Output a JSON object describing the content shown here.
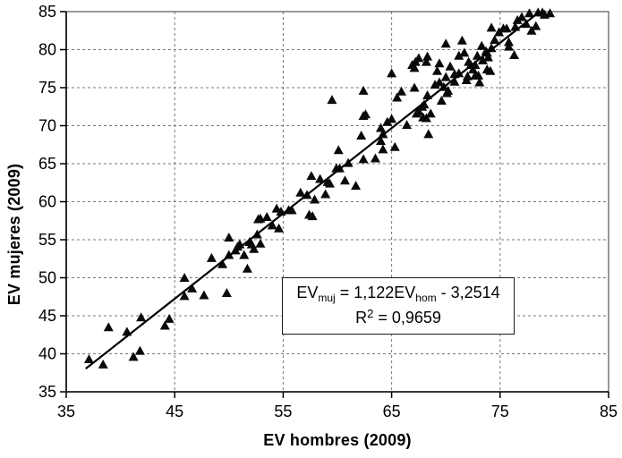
{
  "chart_data": {
    "type": "scatter",
    "title": "",
    "xlabel": "EV hombres (2009)",
    "ylabel": "EV mujeres (2009)",
    "xlim": [
      35,
      85
    ],
    "ylim": [
      35,
      85
    ],
    "x_ticks": [
      35,
      45,
      55,
      65,
      75,
      85
    ],
    "y_ticks": [
      35,
      40,
      45,
      50,
      55,
      60,
      65,
      70,
      75,
      80,
      85
    ],
    "grid": {
      "x_gridlines": [
        45,
        55,
        65,
        75
      ],
      "y_gridlines": [
        40,
        45,
        50,
        55,
        60,
        65,
        70,
        75,
        80
      ],
      "style": "dashed"
    },
    "legend": "none",
    "marker": {
      "shape": "triangle",
      "color": "#0a0a0a"
    },
    "colors": {
      "trendline": "#000000",
      "gridline": "#777777",
      "border": "#555555",
      "axis": "#000000",
      "text": "#000000"
    },
    "trendline": {
      "slope": 1.122,
      "intercept": -3.2514,
      "x_start": 36.8,
      "x_end": 79.3
    },
    "annotation": {
      "line1_parts": [
        {
          "t": "EV"
        },
        {
          "sub": "muj"
        },
        {
          "t": " = 1,122EV"
        },
        {
          "sub": "hom"
        },
        {
          "t": " - 3,2514"
        }
      ],
      "line2_parts": [
        {
          "t": "R"
        },
        {
          "sup": "2"
        },
        {
          "t": " = 0,9659"
        }
      ]
    },
    "points": [
      [
        37.1,
        39.3
      ],
      [
        38.4,
        38.6
      ],
      [
        38.9,
        43.5
      ],
      [
        40.6,
        42.9
      ],
      [
        41.2,
        39.6
      ],
      [
        41.8,
        40.4
      ],
      [
        41.9,
        44.8
      ],
      [
        44.1,
        43.7
      ],
      [
        44.5,
        44.6
      ],
      [
        45.9,
        50.0
      ],
      [
        45.9,
        47.6
      ],
      [
        46.6,
        48.6
      ],
      [
        47.7,
        47.7
      ],
      [
        48.4,
        52.6
      ],
      [
        49.4,
        51.8
      ],
      [
        49.8,
        48.0
      ],
      [
        50.0,
        55.3
      ],
      [
        50.0,
        53.0
      ],
      [
        50.6,
        53.6
      ],
      [
        50.8,
        54.1
      ],
      [
        51.0,
        54.4
      ],
      [
        51.4,
        53.0
      ],
      [
        51.7,
        51.2
      ],
      [
        51.9,
        54.7
      ],
      [
        52.1,
        54.4
      ],
      [
        52.3,
        53.8
      ],
      [
        52.6,
        55.7
      ],
      [
        52.7,
        57.7
      ],
      [
        52.9,
        57.8
      ],
      [
        52.9,
        54.5
      ],
      [
        53.5,
        58.0
      ],
      [
        54.0,
        56.9
      ],
      [
        54.4,
        59.1
      ],
      [
        54.6,
        56.5
      ],
      [
        54.8,
        58.7
      ],
      [
        55.5,
        58.9
      ],
      [
        55.8,
        58.9
      ],
      [
        56.6,
        61.2
      ],
      [
        57.2,
        60.9
      ],
      [
        57.4,
        58.3
      ],
      [
        57.6,
        63.4
      ],
      [
        57.7,
        58.1
      ],
      [
        57.9,
        60.3
      ],
      [
        58.4,
        63.0
      ],
      [
        58.9,
        61.0
      ],
      [
        59.1,
        62.6
      ],
      [
        59.3,
        62.4
      ],
      [
        59.5,
        73.4
      ],
      [
        59.9,
        64.4
      ],
      [
        60.1,
        66.8
      ],
      [
        60.2,
        64.4
      ],
      [
        60.7,
        62.8
      ],
      [
        61.0,
        65.1
      ],
      [
        61.7,
        62.1
      ],
      [
        62.2,
        68.7
      ],
      [
        62.4,
        74.6
      ],
      [
        62.4,
        71.3
      ],
      [
        62.4,
        65.6
      ],
      [
        62.6,
        71.5
      ],
      [
        63.5,
        65.7
      ],
      [
        64.0,
        69.7
      ],
      [
        64.0,
        68.0
      ],
      [
        64.2,
        68.9
      ],
      [
        64.2,
        66.9
      ],
      [
        64.6,
        70.5
      ],
      [
        65.0,
        70.9
      ],
      [
        65.0,
        76.9
      ],
      [
        65.3,
        67.2
      ],
      [
        65.5,
        73.7
      ],
      [
        65.9,
        74.5
      ],
      [
        66.4,
        70.1
      ],
      [
        66.9,
        78.0
      ],
      [
        67.1,
        77.6
      ],
      [
        67.1,
        75.0
      ],
      [
        67.2,
        78.4
      ],
      [
        67.3,
        71.6
      ],
      [
        67.5,
        78.9
      ],
      [
        67.5,
        71.9
      ],
      [
        67.8,
        72.5
      ],
      [
        67.9,
        71.1
      ],
      [
        68.0,
        72.8
      ],
      [
        68.2,
        78.4
      ],
      [
        68.2,
        71.0
      ],
      [
        68.3,
        79.1
      ],
      [
        68.3,
        74.0
      ],
      [
        68.4,
        68.9
      ],
      [
        68.6,
        71.6
      ],
      [
        69.0,
        75.4
      ],
      [
        69.2,
        77.2
      ],
      [
        69.4,
        78.2
      ],
      [
        69.4,
        75.7
      ],
      [
        69.6,
        73.3
      ],
      [
        69.8,
        75.1
      ],
      [
        70.0,
        80.8
      ],
      [
        70.0,
        76.4
      ],
      [
        70.1,
        74.3
      ],
      [
        70.2,
        74.6
      ],
      [
        70.4,
        77.8
      ],
      [
        70.8,
        76.8
      ],
      [
        70.8,
        75.8
      ],
      [
        71.2,
        79.2
      ],
      [
        71.2,
        76.9
      ],
      [
        71.5,
        81.2
      ],
      [
        71.7,
        79.6
      ],
      [
        71.9,
        76.0
      ],
      [
        72.0,
        76.5
      ],
      [
        72.1,
        78.4
      ],
      [
        72.3,
        78.0
      ],
      [
        72.5,
        77.4
      ],
      [
        72.7,
        78.0
      ],
      [
        72.7,
        76.6
      ],
      [
        72.9,
        79.2
      ],
      [
        73.0,
        76.6
      ],
      [
        73.1,
        75.7
      ],
      [
        73.3,
        80.5
      ],
      [
        73.4,
        78.6
      ],
      [
        73.7,
        79.8
      ],
      [
        73.8,
        79.6
      ],
      [
        73.8,
        77.4
      ],
      [
        73.9,
        79.0
      ],
      [
        74.1,
        77.2
      ],
      [
        74.2,
        82.9
      ],
      [
        74.2,
        80.2
      ],
      [
        74.5,
        81.3
      ],
      [
        74.9,
        82.3
      ],
      [
        75.3,
        82.8
      ],
      [
        75.6,
        82.8
      ],
      [
        75.8,
        81.0
      ],
      [
        75.8,
        80.4
      ],
      [
        76.3,
        79.3
      ],
      [
        76.4,
        83.0
      ],
      [
        76.6,
        83.9
      ],
      [
        77.0,
        84.3
      ],
      [
        77.4,
        83.4
      ],
      [
        77.7,
        84.8
      ],
      [
        77.9,
        82.5
      ],
      [
        78.3,
        83.1
      ],
      [
        78.5,
        84.9
      ],
      [
        78.9,
        84.9
      ],
      [
        79.1,
        84.6
      ],
      [
        79.6,
        84.8
      ]
    ]
  }
}
